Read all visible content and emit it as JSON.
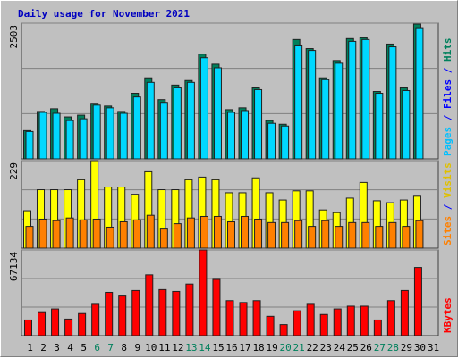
{
  "chart_data": [
    {
      "type": "bar",
      "title": "Daily usage for November 2021",
      "title_color": "#0000c0",
      "ylim": [
        0,
        2503
      ],
      "yticks": [
        2503
      ],
      "legend": [
        {
          "text": "Pages",
          "color": "#00c0ff"
        },
        {
          "text": " / ",
          "color": "#0000ff"
        },
        {
          "text": "Files",
          "color": "#0000ff"
        },
        {
          "text": " / ",
          "color": "#0000ff"
        },
        {
          "text": "Hits",
          "color": "#00805c"
        }
      ],
      "series": [
        {
          "color": "#00805c",
          "values": [
            521,
            874,
            924,
            773,
            806,
            1025,
            974,
            874,
            1210,
            1495,
            1092,
            1361,
            1445,
            1932,
            1747,
            907,
            941,
            1310,
            706,
            638,
            2201,
            2033,
            1495,
            1814,
            2218,
            2234,
            1243,
            2117,
            1310,
            2486,
            0
          ]
        },
        {
          "color": "#00d8ff",
          "values": [
            504,
            857,
            840,
            706,
            739,
            991,
            941,
            840,
            1142,
            1411,
            1042,
            1310,
            1411,
            1865,
            1680,
            857,
            890,
            1277,
            655,
            605,
            2100,
            1999,
            1461,
            1764,
            2167,
            2201,
            1210,
            2066,
            1260,
            2419,
            0
          ]
        }
      ]
    },
    {
      "type": "bar",
      "ylim": [
        0,
        229
      ],
      "yticks": [
        229
      ],
      "legend": [
        {
          "text": "Sites",
          "color": "#ff8000"
        },
        {
          "text": " / ",
          "color": "#0000ff"
        },
        {
          "text": "Visits",
          "color": "#e0c000"
        }
      ],
      "series": [
        {
          "color": "#ffff00",
          "values": [
            98,
            153,
            153,
            153,
            179,
            229,
            160,
            160,
            141,
            200,
            153,
            153,
            179,
            186,
            179,
            145,
            145,
            184,
            145,
            126,
            150,
            150,
            100,
            93,
            131,
            172,
            124,
            119,
            126,
            136,
            0
          ]
        },
        {
          "color": "#ff8000",
          "values": [
            57,
            76,
            72,
            79,
            74,
            76,
            55,
            69,
            74,
            86,
            50,
            64,
            79,
            83,
            83,
            69,
            83,
            76,
            67,
            67,
            72,
            57,
            72,
            57,
            67,
            67,
            57,
            67,
            57,
            72,
            0
          ]
        }
      ]
    },
    {
      "type": "bar",
      "ylim": [
        0,
        67134
      ],
      "yticks": [
        67134
      ],
      "legend": [
        {
          "text": "KBytes",
          "color": "#ff0000"
        }
      ],
      "categories": [
        "1",
        "2",
        "3",
        "4",
        "5",
        "6",
        "7",
        "8",
        "9",
        "10",
        "11",
        "12",
        "13",
        "14",
        "15",
        "16",
        "17",
        "18",
        "19",
        "20",
        "21",
        "22",
        "23",
        "24",
        "25",
        "26",
        "27",
        "28",
        "29",
        "30",
        "31"
      ],
      "category_colors": [
        "#000000",
        "#000000",
        "#000000",
        "#000000",
        "#000000",
        "#00805c",
        "#00805c",
        "#000000",
        "#000000",
        "#000000",
        "#000000",
        "#000000",
        "#00805c",
        "#00805c",
        "#000000",
        "#000000",
        "#000000",
        "#000000",
        "#000000",
        "#00805c",
        "#00805c",
        "#000000",
        "#000000",
        "#000000",
        "#000000",
        "#000000",
        "#00805c",
        "#00805c",
        "#000000",
        "#000000",
        "#000000"
      ],
      "series": [
        {
          "color": "#ff0000",
          "values": [
            12274,
            18050,
            20938,
            12996,
            17328,
            24548,
            33934,
            31046,
            35378,
            47652,
            36100,
            34656,
            40432,
            67134,
            44042,
            27436,
            25992,
            27436,
            15162,
            8664,
            19494,
            24548,
            16606,
            20938,
            23104,
            23104,
            12274,
            27436,
            35378,
            53428,
            0
          ]
        }
      ]
    }
  ]
}
